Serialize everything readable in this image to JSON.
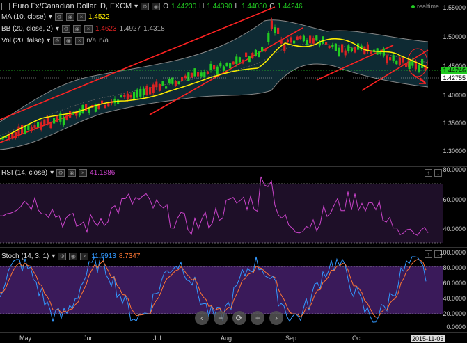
{
  "header": {
    "title": "Euro Fx/Canadian Dollar, D, FXCM",
    "ohlc": {
      "o_label": "O",
      "o": "1.44230",
      "h_label": "H",
      "h": "1.44390",
      "l_label": "L",
      "l": "1.44030",
      "c_label": "C",
      "c": "1.44246"
    },
    "realtime": "realtime"
  },
  "indicators": {
    "ma": {
      "label": "MA (10, close)",
      "value": "1.4522"
    },
    "bb": {
      "label": "BB (20, close, 2)",
      "v1": "1.4623",
      "v2": "1.4927",
      "v3": "1.4318"
    },
    "vol": {
      "label": "Vol (20, false)",
      "v1": "n/a",
      "v2": "n/a"
    }
  },
  "price_axis": {
    "ticks": [
      "1.55000",
      "1.50000",
      "1.45000",
      "1.40000",
      "1.35000",
      "1.30000"
    ],
    "badge_green": "1.44246",
    "badge_white": "1.42755"
  },
  "rsi": {
    "label": "RSI (14, close)",
    "value": "41.1886",
    "ticks": [
      "80.0000",
      "60.0000",
      "40.0000"
    ]
  },
  "stoch": {
    "label": "Stoch (14, 3, 1)",
    "v1": "11.5913",
    "v2": "8.7347",
    "ticks": [
      "100.0000",
      "80.0000",
      "60.0000",
      "40.0000",
      "20.0000",
      "0.0000"
    ]
  },
  "x_axis": {
    "ticks": [
      "May",
      "Jun",
      "Jul",
      "Aug",
      "Sep",
      "Oct"
    ],
    "date_badge": "2015-11-03"
  },
  "nav": {
    "left": "‹",
    "minus": "−",
    "reset": "⟳",
    "plus": "+",
    "right": "›"
  },
  "colors": {
    "up": "#22cc22",
    "down": "#dd2222",
    "ma": "#ffee00",
    "bb": "#888888",
    "trend": "#ff2222",
    "rsi": "#cc44cc",
    "stoch_k": "#3399ff",
    "stoch_d": "#ff7733"
  }
}
